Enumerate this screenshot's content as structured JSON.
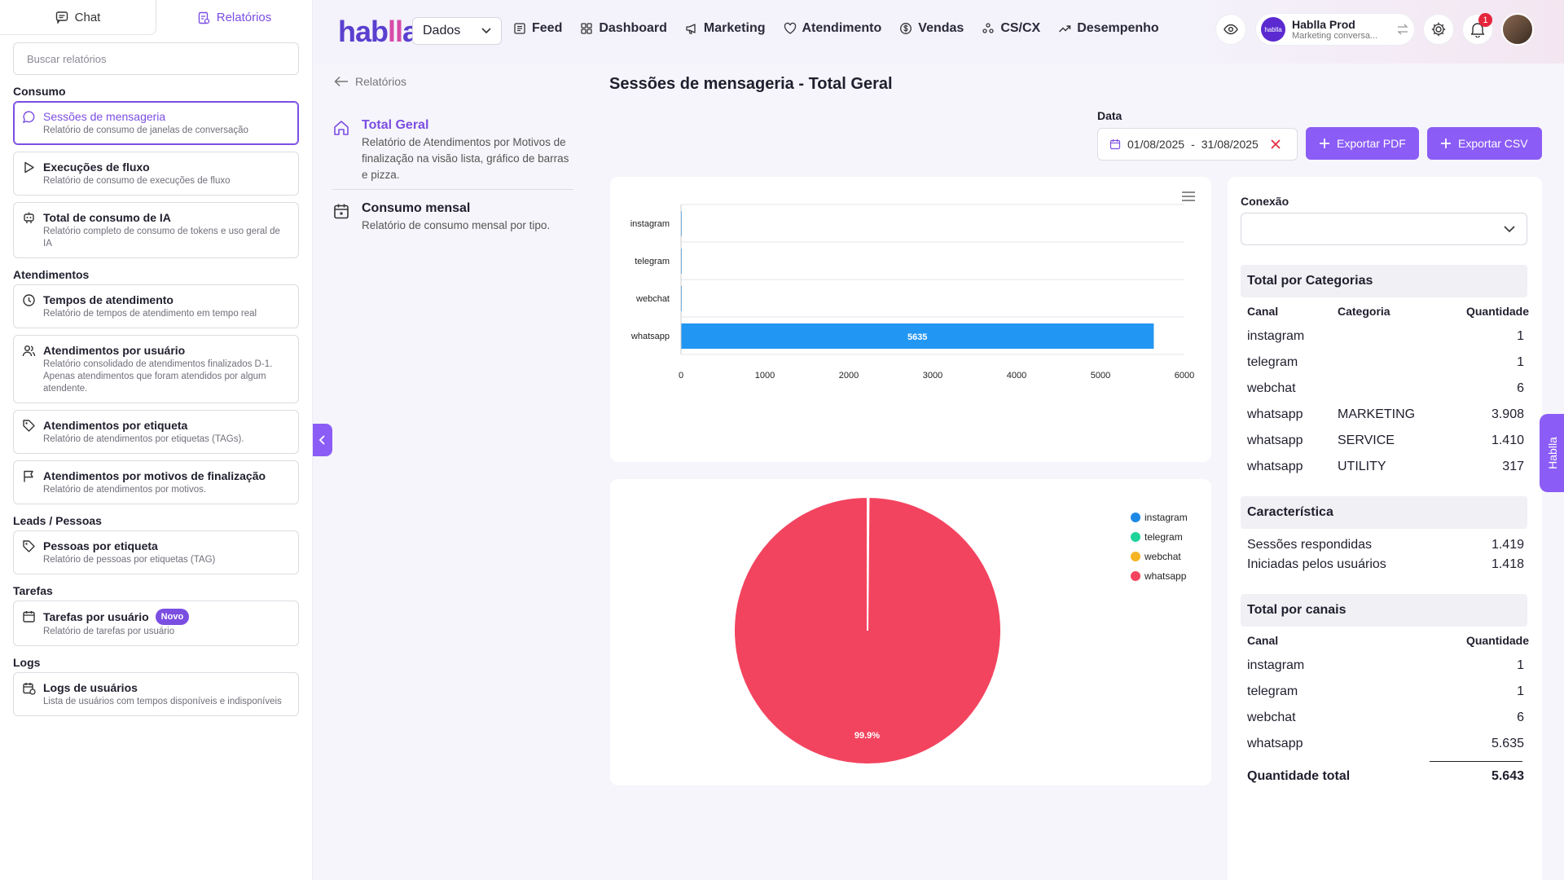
{
  "sidebar": {
    "tabs": {
      "chat": "Chat",
      "reports": "Relatórios"
    },
    "search_placeholder": "Buscar relatórios",
    "sections": {
      "consumo": "Consumo",
      "atendimentos": "Atendimentos",
      "leads": "Leads / Pessoas",
      "tarefas": "Tarefas",
      "logs": "Logs"
    },
    "items": {
      "sessoes": {
        "title": "Sessões de mensageria",
        "desc": "Relatório de consumo de janelas de conversação"
      },
      "fluxo": {
        "title": "Execuções de fluxo",
        "desc": "Relatório de consumo de execuções de fluxo"
      },
      "ia": {
        "title": "Total de consumo de IA",
        "desc": "Relatório completo de consumo de tokens e uso geral de IA"
      },
      "tempos": {
        "title": "Tempos de atendimento",
        "desc": "Relatório de tempos de atendimento em tempo real"
      },
      "usuario": {
        "title": "Atendimentos por usuário",
        "desc": "Relatório consolidado de atendimentos finalizados D-1. Apenas atendimentos que foram atendidos por algum atendente."
      },
      "etiqueta": {
        "title": "Atendimentos por etiqueta",
        "desc": "Relatório de atendimentos por etiquetas (TAGs)."
      },
      "motivos": {
        "title": "Atendimentos por motivos de finalização",
        "desc": "Relatório de atendimentos por motivos."
      },
      "pessoas": {
        "title": "Pessoas por etiqueta",
        "desc": "Relatório de pessoas por etiquetas (TAG)"
      },
      "tarefas": {
        "title": "Tarefas por usuário",
        "badge": "Novo",
        "desc": "Relatório de tarefas por usuário"
      },
      "logs": {
        "title": "Logs de usuários",
        "desc": "Lista de usuários com tempos disponíveis e indisponíveis"
      }
    }
  },
  "header": {
    "logo": "hablla",
    "dados_select": "Dados",
    "nav": [
      "Feed",
      "Dashboard",
      "Marketing",
      "Atendimento",
      "Vendas",
      "CS/CX",
      "Desempenho"
    ],
    "org": {
      "avatar": "hablla",
      "name": "Hablla Prod",
      "subtitle": "Marketing conversa..."
    },
    "notification_count": "1"
  },
  "reports": {
    "back_label": "Relatórios",
    "items": [
      {
        "title": "Total Geral",
        "desc": "Relatório de Atendimentos por Motivos de finalização na visão lista, gráfico de barras e pizza."
      },
      {
        "title": "Consumo mensal",
        "desc": "Relatório de consumo mensal por tipo."
      }
    ]
  },
  "page": {
    "title": "Sessões de mensageria - Total Geral",
    "date_label": "Data",
    "date_start": "01/08/2025",
    "date_sep": "-",
    "date_end": "31/08/2025",
    "export_pdf": "Exportar PDF",
    "export_csv": "Exportar CSV"
  },
  "chart_data": [
    {
      "type": "bar",
      "orientation": "horizontal",
      "categories": [
        "instagram",
        "telegram",
        "webchat",
        "whatsapp"
      ],
      "values": [
        1,
        1,
        6,
        5635
      ],
      "data_labels": [
        "",
        "",
        "",
        "5635"
      ],
      "xlim": [
        0,
        6000
      ],
      "xticks": [
        0,
        1000,
        2000,
        3000,
        4000,
        5000,
        6000
      ],
      "grid": true,
      "color": "#2196f3"
    },
    {
      "type": "pie",
      "labels": [
        "instagram",
        "telegram",
        "webchat",
        "whatsapp"
      ],
      "values": [
        1,
        1,
        6,
        5635
      ],
      "colors": [
        "#1e88e5",
        "#1ed39a",
        "#f5b423",
        "#f3445f"
      ],
      "data_labels": [
        "",
        "",
        "",
        "99.9%"
      ],
      "legend": "top-right"
    }
  ],
  "right": {
    "conexao_label": "Conexão",
    "categorias": {
      "title": "Total por Categorias",
      "headers": [
        "Canal",
        "Categoria",
        "Quantidade"
      ],
      "rows": [
        [
          "instagram",
          "",
          "1"
        ],
        [
          "telegram",
          "",
          "1"
        ],
        [
          "webchat",
          "",
          "6"
        ],
        [
          "whatsapp",
          "MARKETING",
          "3.908"
        ],
        [
          "whatsapp",
          "SERVICE",
          "1.410"
        ],
        [
          "whatsapp",
          "UTILITY",
          "317"
        ]
      ]
    },
    "caracteristica": {
      "title": "Característica",
      "rows": [
        [
          "Sessões respondidas",
          "1.419"
        ],
        [
          "Iniciadas pelos usuários",
          "1.418"
        ]
      ]
    },
    "canais": {
      "title": "Total por canais",
      "headers": [
        "Canal",
        "Quantidade"
      ],
      "rows": [
        [
          "instagram",
          "1"
        ],
        [
          "telegram",
          "1"
        ],
        [
          "webchat",
          "6"
        ],
        [
          "whatsapp",
          "5.635"
        ]
      ],
      "total_label": "Quantidade total",
      "total_value": "5.643"
    }
  },
  "side_tab": "Habllla"
}
